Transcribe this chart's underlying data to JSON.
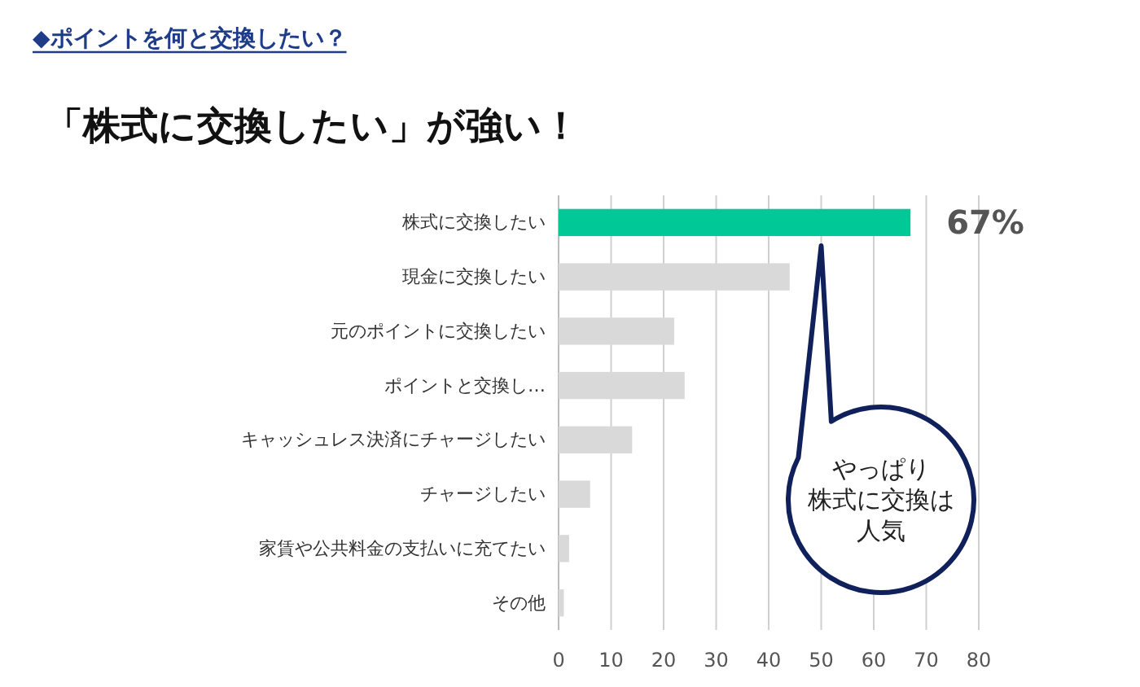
{
  "chart_data": {
    "type": "bar",
    "orientation": "horizontal",
    "subtitle": "◆ポイントを何と交換したい？",
    "title": "「株式に交換したい」が強い！",
    "categories": [
      "株式に交換したい",
      "現金に交換したい",
      "元のポイントに交換したい",
      "ポイントと交換し…",
      "キャッシュレス決済にチャージしたい",
      "チャージしたい",
      "家賃や公共料金の支払いに充てたい",
      "その他"
    ],
    "values": [
      67,
      44,
      22,
      24,
      14,
      6,
      2,
      1
    ],
    "colors": [
      "#00c896",
      "#d9d9d9",
      "#d9d9d9",
      "#d9d9d9",
      "#d9d9d9",
      "#d9d9d9",
      "#d9d9d9",
      "#d9d9d9"
    ],
    "value_labels": [
      "67%",
      null,
      null,
      null,
      null,
      null,
      null,
      null
    ],
    "xlim": [
      0,
      80
    ],
    "xticks": [
      0,
      10,
      20,
      30,
      40,
      50,
      60,
      70,
      80
    ],
    "grid": "x",
    "annotations": [
      "やっぱり",
      "株式に交換は",
      "人気"
    ]
  }
}
